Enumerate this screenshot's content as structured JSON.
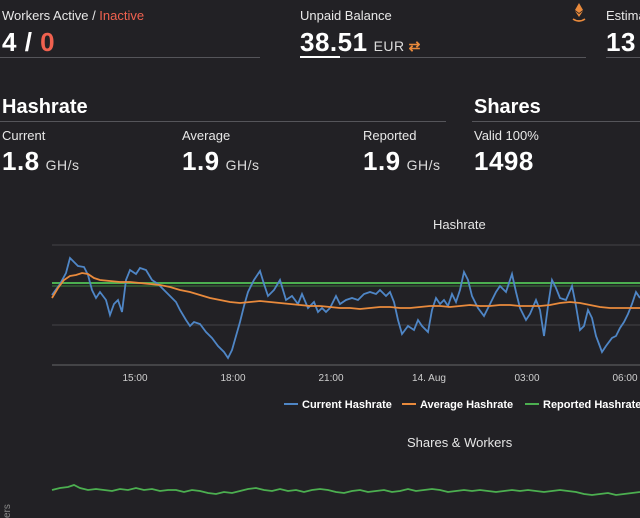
{
  "top": {
    "workers_label": "Workers Active",
    "workers_separator": " / ",
    "workers_inactive_label": "Inactive",
    "workers_active": "4",
    "workers_slash": " / ",
    "workers_inactive": "0",
    "unpaid_label": "Unpaid Balance",
    "unpaid_value": "38.51",
    "unpaid_currency": "EUR",
    "swap_icon": "⇄",
    "estimated_label": "Estima",
    "estimated_value": "13"
  },
  "hashrate": {
    "title": "Hashrate",
    "current_label": "Current",
    "current_value": "1.8",
    "current_unit": "GH/s",
    "average_label": "Average",
    "average_value": "1.9",
    "average_unit": "GH/s",
    "reported_label": "Reported",
    "reported_value": "1.9",
    "reported_unit": "GH/s"
  },
  "shares": {
    "title": "Shares",
    "valid_label": "Valid 100%",
    "valid_value": "1498"
  },
  "hashrate_chart": {
    "title": "Hashrate",
    "x_ticks": [
      "15:00",
      "18:00",
      "21:00",
      "14. Aug",
      "03:00",
      "06:00"
    ],
    "legend": [
      {
        "name": "Current Hashrate",
        "color": "#4f86c6"
      },
      {
        "name": "Average Hashrate",
        "color": "#e98a3c"
      },
      {
        "name": "Reported Hashrate",
        "color": "#4caf50"
      }
    ]
  },
  "shares_chart": {
    "title": "Shares & Workers",
    "axis_label_fragment": "ers"
  },
  "colors": {
    "background": "#222125",
    "inactive": "#f0614f",
    "current": "#4f86c6",
    "average": "#e98a3c",
    "reported": "#4caf50"
  }
}
